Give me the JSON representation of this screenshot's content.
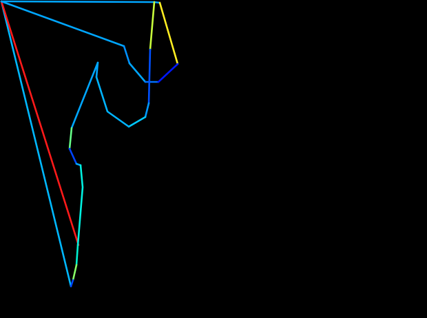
{
  "background_color": "#000000",
  "drawing": {
    "segments": [
      {
        "id": "top-edge",
        "color": "#00a6ff"
      },
      {
        "id": "top-right-stub",
        "color": "#00a6ff"
      },
      {
        "id": "left-outer-edge",
        "color": "#00b8ff"
      },
      {
        "id": "red-diagonal",
        "color": "#ff1a1a"
      },
      {
        "id": "upper-arm",
        "color": "#00a6ff"
      },
      {
        "id": "arm-bend",
        "color": "#0090ff"
      },
      {
        "id": "arm-to-junction",
        "color": "#00a6ff"
      },
      {
        "id": "junction-bar",
        "color": "#0070ff"
      },
      {
        "id": "yellow-green-upper",
        "color": "#c8ff3c"
      },
      {
        "id": "vertical-blue",
        "color": "#0050ff"
      },
      {
        "id": "yellow-right",
        "color": "#ffee22"
      },
      {
        "id": "dark-blue-link",
        "color": "#0018ff"
      },
      {
        "id": "hook-lower-right",
        "color": "#0098ff"
      },
      {
        "id": "hook-bottom",
        "color": "#00c8ff"
      },
      {
        "id": "hook-left",
        "color": "#00b4ff"
      },
      {
        "id": "hook-top-stub",
        "color": "#00a6ff"
      },
      {
        "id": "inner-long-left",
        "color": "#00a6ff"
      },
      {
        "id": "green-short",
        "color": "#66ff88"
      },
      {
        "id": "blue-step",
        "color": "#0044ff"
      },
      {
        "id": "step-corner",
        "color": "#00a6ff"
      },
      {
        "id": "cyan-long",
        "color": "#00f0e0"
      },
      {
        "id": "cyan-lower",
        "color": "#00f0d0"
      },
      {
        "id": "green-tip",
        "color": "#88ff66"
      },
      {
        "id": "bottom-blue-tip",
        "color": "#0048ff"
      }
    ]
  }
}
